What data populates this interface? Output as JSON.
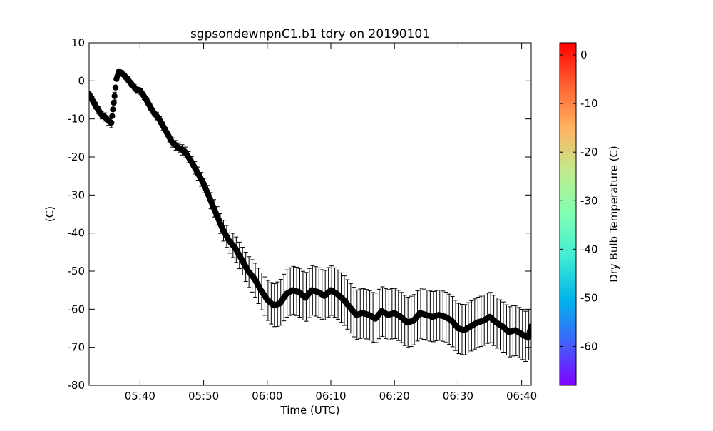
{
  "chart_data": {
    "type": "scatter",
    "title": "sgpsondewnpnC1.b1 tdry on 20190101",
    "xlabel": "Time (UTC)",
    "ylabel": "(C)",
    "xlim": [
      "05:32",
      "06:41.5"
    ],
    "ylim": [
      -80,
      10
    ],
    "x_ticks": [
      "05:40",
      "05:50",
      "06:00",
      "06:10",
      "06:20",
      "06:30",
      "06:40"
    ],
    "y_ticks": [
      10,
      0,
      -10,
      -20,
      -30,
      -40,
      -50,
      -60,
      -70,
      -80
    ],
    "grid": false,
    "colorbar": {
      "label": "Dry Bulb Temperature (C)",
      "range": [
        -68,
        2.5
      ],
      "ticks": [
        0,
        -10,
        -20,
        -30,
        -40,
        -50,
        -60
      ],
      "colormap": "rainbow"
    },
    "marker_color": "#000000",
    "error_bar_color": "#000000",
    "series": [
      {
        "x": [
          "05:32",
          "05:33",
          "05:34",
          "05:34.5",
          "05:35",
          "05:35.5",
          "05:36",
          "05:36.3",
          "05:36.7",
          "05:37.5",
          "05:38.5",
          "05:39.5",
          "05:40",
          "05:41",
          "05:42",
          "05:43",
          "05:44",
          "05:45",
          "05:46",
          "05:47",
          "05:48",
          "05:49",
          "05:50",
          "05:51",
          "05:52",
          "05:53",
          "05:54",
          "05:55",
          "05:56",
          "05:57",
          "05:58",
          "05:59",
          "06:00",
          "06:01",
          "06:02",
          "06:03",
          "06:04",
          "06:05",
          "06:06",
          "06:07",
          "06:08",
          "06:09",
          "06:10",
          "06:11",
          "06:12",
          "06:13",
          "06:14",
          "06:15",
          "06:16",
          "06:17",
          "06:18",
          "06:19",
          "06:20",
          "06:21",
          "06:22",
          "06:23",
          "06:24",
          "06:25",
          "06:26",
          "06:27",
          "06:28",
          "06:29",
          "06:30",
          "06:31",
          "06:32",
          "06:33",
          "06:34",
          "06:35",
          "06:36",
          "06:37",
          "06:38",
          "06:39",
          "06:40",
          "06:41",
          "06:41.5"
        ],
        "y": [
          -3.5,
          -6.5,
          -9,
          -9.5,
          -10.5,
          -11,
          -4,
          0.5,
          2.5,
          1.5,
          -0.5,
          -2.5,
          -2.5,
          -5,
          -8,
          -10,
          -13,
          -16,
          -17.5,
          -18.5,
          -21,
          -24,
          -27,
          -31,
          -35,
          -39,
          -42,
          -44,
          -47,
          -50,
          -52,
          -55,
          -57.5,
          -59,
          -58.5,
          -56,
          -55,
          -55.5,
          -57,
          -55,
          -55.5,
          -56.5,
          -55,
          -56,
          -57.5,
          -59.5,
          -61.5,
          -61,
          -61.5,
          -62.5,
          -60.5,
          -61.5,
          -61,
          -62,
          -63.5,
          -63,
          -61,
          -61.5,
          -62,
          -61.5,
          -62,
          -63,
          -65,
          -65.5,
          -64.5,
          -63.5,
          -63,
          -62,
          -63.5,
          -64.5,
          -66,
          -65.5,
          -66.5,
          -67.5,
          -64.5
        ],
        "error": [
          0.8,
          0.9,
          1,
          1.1,
          1.2,
          1.3,
          1,
          0.9,
          0.8,
          0.8,
          0.8,
          0.8,
          0.8,
          0.9,
          1,
          1,
          1.1,
          1.2,
          1.3,
          1.4,
          1.5,
          1.7,
          1.9,
          2.1,
          2.4,
          2.7,
          3,
          3.3,
          3.6,
          4,
          4.4,
          4.8,
          5.2,
          5.6,
          6,
          6.2,
          6.3,
          6.4,
          6.4,
          6.5,
          6.5,
          6.5,
          6.5,
          6.5,
          6.5,
          6.5,
          6.5,
          6.5,
          6.5,
          6.5,
          6.5,
          6.6,
          6.6,
          6.6,
          6.6,
          6.6,
          6.6,
          6.6,
          6.6,
          6.6,
          6.6,
          6.6,
          6.6,
          6.6,
          6.6,
          6.6,
          6.6,
          6.6,
          6.6,
          6.6,
          6.6,
          6.6,
          6.6,
          6.6,
          6.6
        ]
      }
    ]
  }
}
